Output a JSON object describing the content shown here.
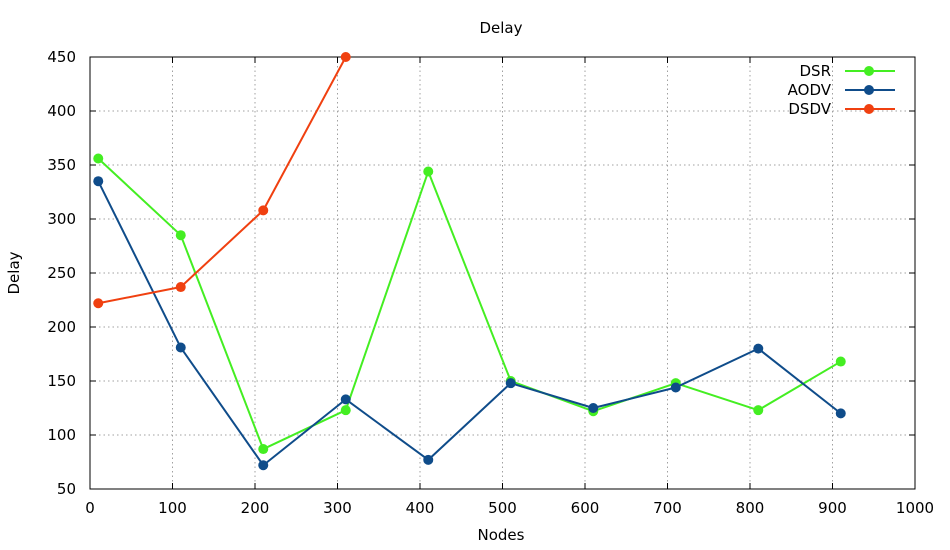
{
  "chart_data": {
    "type": "line",
    "title": "Delay",
    "xlabel": "Nodes",
    "ylabel": "Delay",
    "xlim": [
      0,
      1000
    ],
    "ylim": [
      50,
      450
    ],
    "xticks": [
      0,
      100,
      200,
      300,
      400,
      500,
      600,
      700,
      800,
      900,
      1000
    ],
    "yticks": [
      50,
      100,
      150,
      200,
      250,
      300,
      350,
      400,
      450
    ],
    "grid": true,
    "legend_position": "top-right",
    "series": [
      {
        "name": "DSR",
        "color": "#44ee22",
        "x": [
          10,
          110,
          210,
          310,
          410,
          510,
          610,
          710,
          810,
          910
        ],
        "values": [
          356,
          285,
          87,
          123,
          344,
          150,
          122,
          148,
          123,
          168
        ]
      },
      {
        "name": "AODV",
        "color": "#0f4c8a",
        "x": [
          10,
          110,
          210,
          310,
          410,
          510,
          610,
          710,
          810,
          910
        ],
        "values": [
          335,
          181,
          72,
          133,
          77,
          148,
          125,
          144,
          180,
          120
        ]
      },
      {
        "name": "DSDV",
        "color": "#f04010",
        "x": [
          10,
          110,
          210,
          310
        ],
        "values": [
          222,
          237,
          308,
          450
        ]
      }
    ]
  }
}
